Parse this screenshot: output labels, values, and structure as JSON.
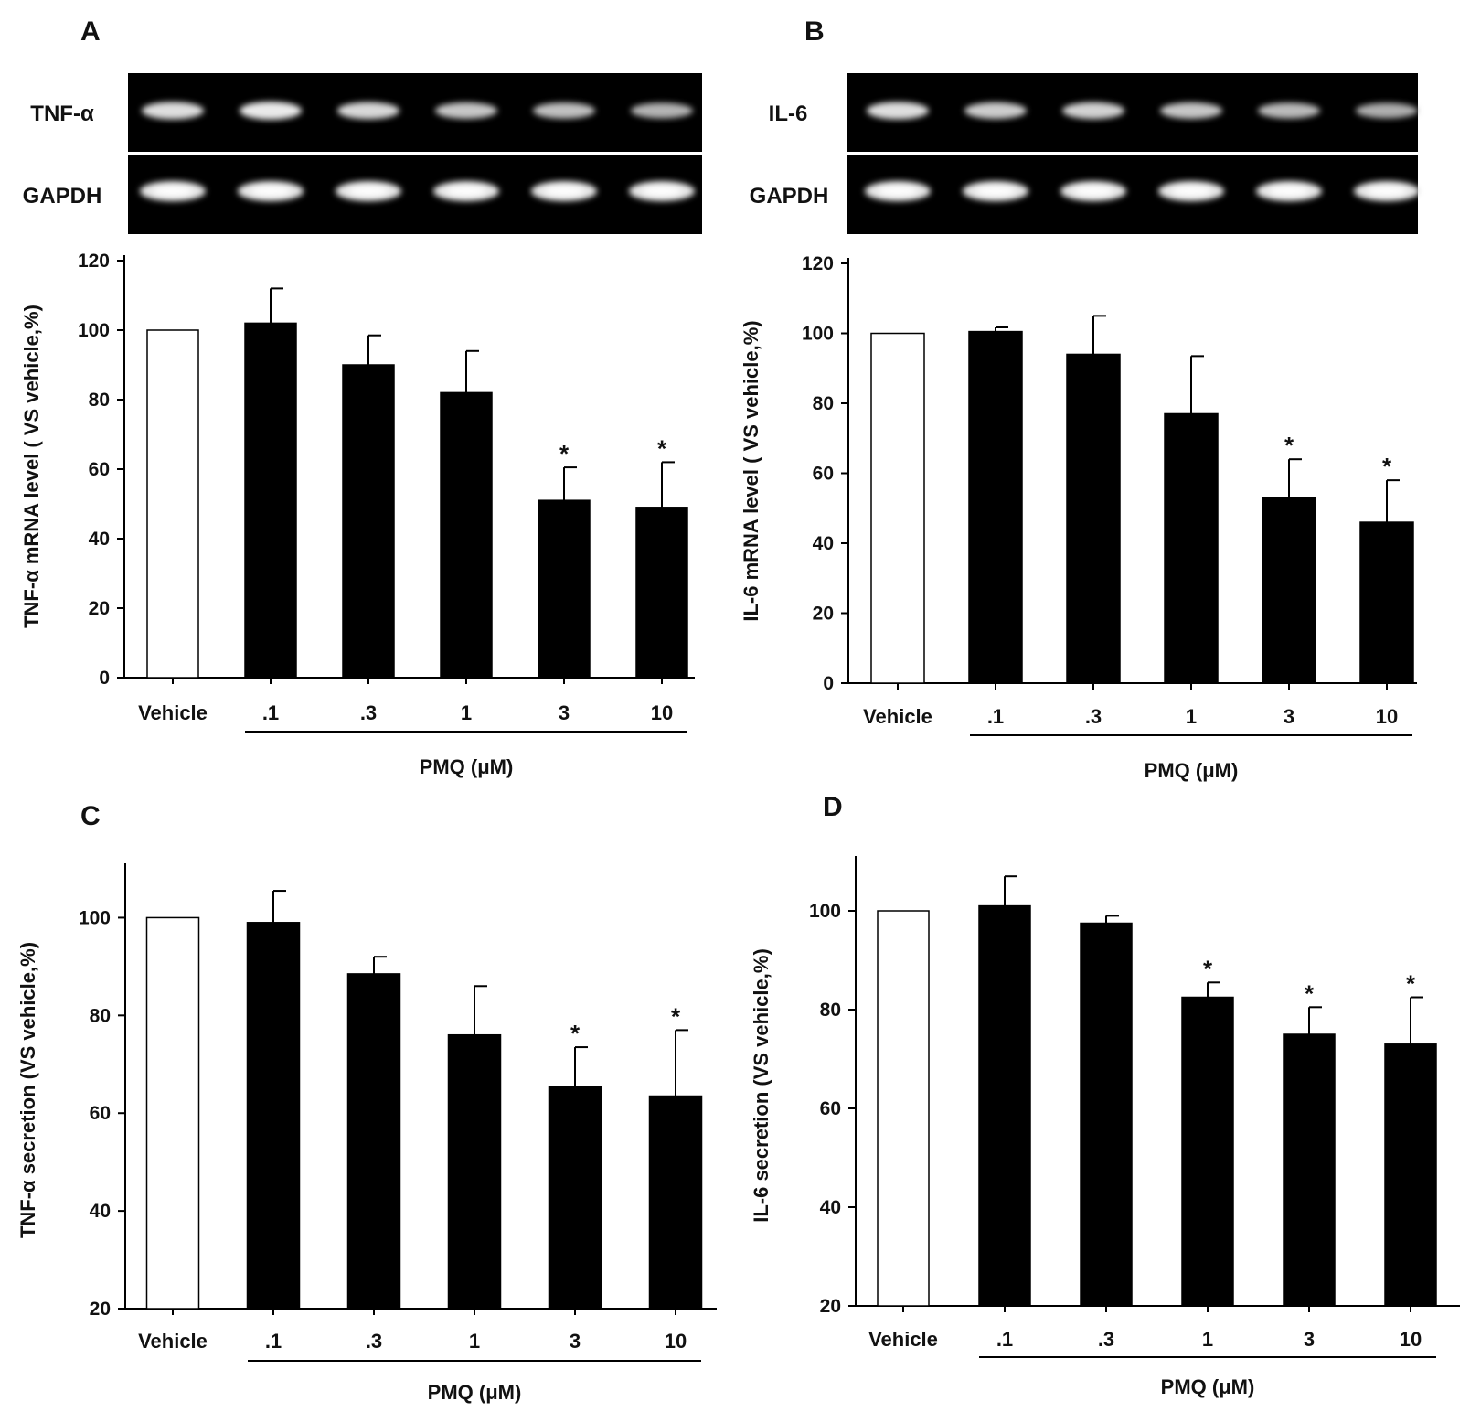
{
  "chart_data": [
    {
      "panel": "A",
      "type": "bar",
      "gel": {
        "target_label": "TNF-α",
        "control_label": "GAPDH",
        "target_intensity": [
          0.85,
          0.95,
          0.8,
          0.65,
          0.6,
          0.5
        ],
        "control_intensity": [
          1,
          1,
          1,
          1,
          1,
          1
        ]
      },
      "categories": [
        "Vehicle",
        ".1",
        ".3",
        "1",
        "3",
        "10"
      ],
      "values": [
        100,
        102,
        90,
        82,
        51,
        49
      ],
      "errors": [
        0,
        10,
        8.5,
        12,
        9.5,
        13
      ],
      "significant": [
        false,
        false,
        false,
        false,
        true,
        true
      ],
      "significance_marker": "*",
      "bar_colors": [
        "#ffffff",
        "#000000",
        "#000000",
        "#000000",
        "#000000",
        "#000000"
      ],
      "ylabel": "TNF-α  mRNA level ( VS vehicle,%)",
      "xlabel": "PMQ (μM)",
      "ylim": [
        0,
        120
      ],
      "yticks": [
        0,
        20,
        40,
        60,
        80,
        100,
        120
      ]
    },
    {
      "panel": "B",
      "type": "bar",
      "gel": {
        "target_label": "IL-6",
        "control_label": "GAPDH",
        "target_intensity": [
          0.85,
          0.7,
          0.75,
          0.65,
          0.55,
          0.45
        ],
        "control_intensity": [
          1,
          1,
          1,
          1,
          1,
          1
        ]
      },
      "categories": [
        "Vehicle",
        ".1",
        ".3",
        "1",
        "3",
        "10"
      ],
      "values": [
        100,
        100.5,
        94,
        77,
        53,
        46
      ],
      "errors": [
        0,
        1.2,
        11,
        16.5,
        11,
        12
      ],
      "significant": [
        false,
        false,
        false,
        false,
        true,
        true
      ],
      "significance_marker": "*",
      "bar_colors": [
        "#ffffff",
        "#000000",
        "#000000",
        "#000000",
        "#000000",
        "#000000"
      ],
      "ylabel": "IL-6 mRNA level ( VS vehicle,%)",
      "xlabel": "PMQ (μM)",
      "ylim": [
        0,
        120
      ],
      "yticks": [
        0,
        20,
        40,
        60,
        80,
        100,
        120
      ]
    },
    {
      "panel": "C",
      "type": "bar",
      "categories": [
        "Vehicle",
        ".1",
        ".3",
        "1",
        "3",
        "10"
      ],
      "values": [
        100,
        99,
        88.5,
        76,
        65.5,
        63.5
      ],
      "errors": [
        0,
        6.5,
        3.5,
        10,
        8,
        13.5
      ],
      "significant": [
        false,
        false,
        false,
        false,
        true,
        true
      ],
      "significance_marker": "*",
      "bar_colors": [
        "#ffffff",
        "#000000",
        "#000000",
        "#000000",
        "#000000",
        "#000000"
      ],
      "ylabel": "TNF-α  secretion (VS vehicle,%)",
      "xlabel": "PMQ (μM)",
      "ylim": [
        20,
        110
      ],
      "yticks": [
        20,
        40,
        60,
        80,
        100
      ]
    },
    {
      "panel": "D",
      "type": "bar",
      "categories": [
        "Vehicle",
        ".1",
        ".3",
        "1",
        "3",
        "10"
      ],
      "values": [
        100,
        101,
        97.5,
        82.5,
        75,
        73
      ],
      "errors": [
        0,
        6,
        1.5,
        3,
        5.5,
        9.5
      ],
      "significant": [
        false,
        false,
        false,
        true,
        true,
        true
      ],
      "significance_marker": "*",
      "bar_colors": [
        "#ffffff",
        "#000000",
        "#000000",
        "#000000",
        "#000000",
        "#000000"
      ],
      "ylabel": "IL-6 secretion (VS vehicle,%)",
      "xlabel": "PMQ (μM)",
      "ylim": [
        20,
        110
      ],
      "yticks": [
        20,
        40,
        60,
        80,
        100
      ]
    }
  ]
}
